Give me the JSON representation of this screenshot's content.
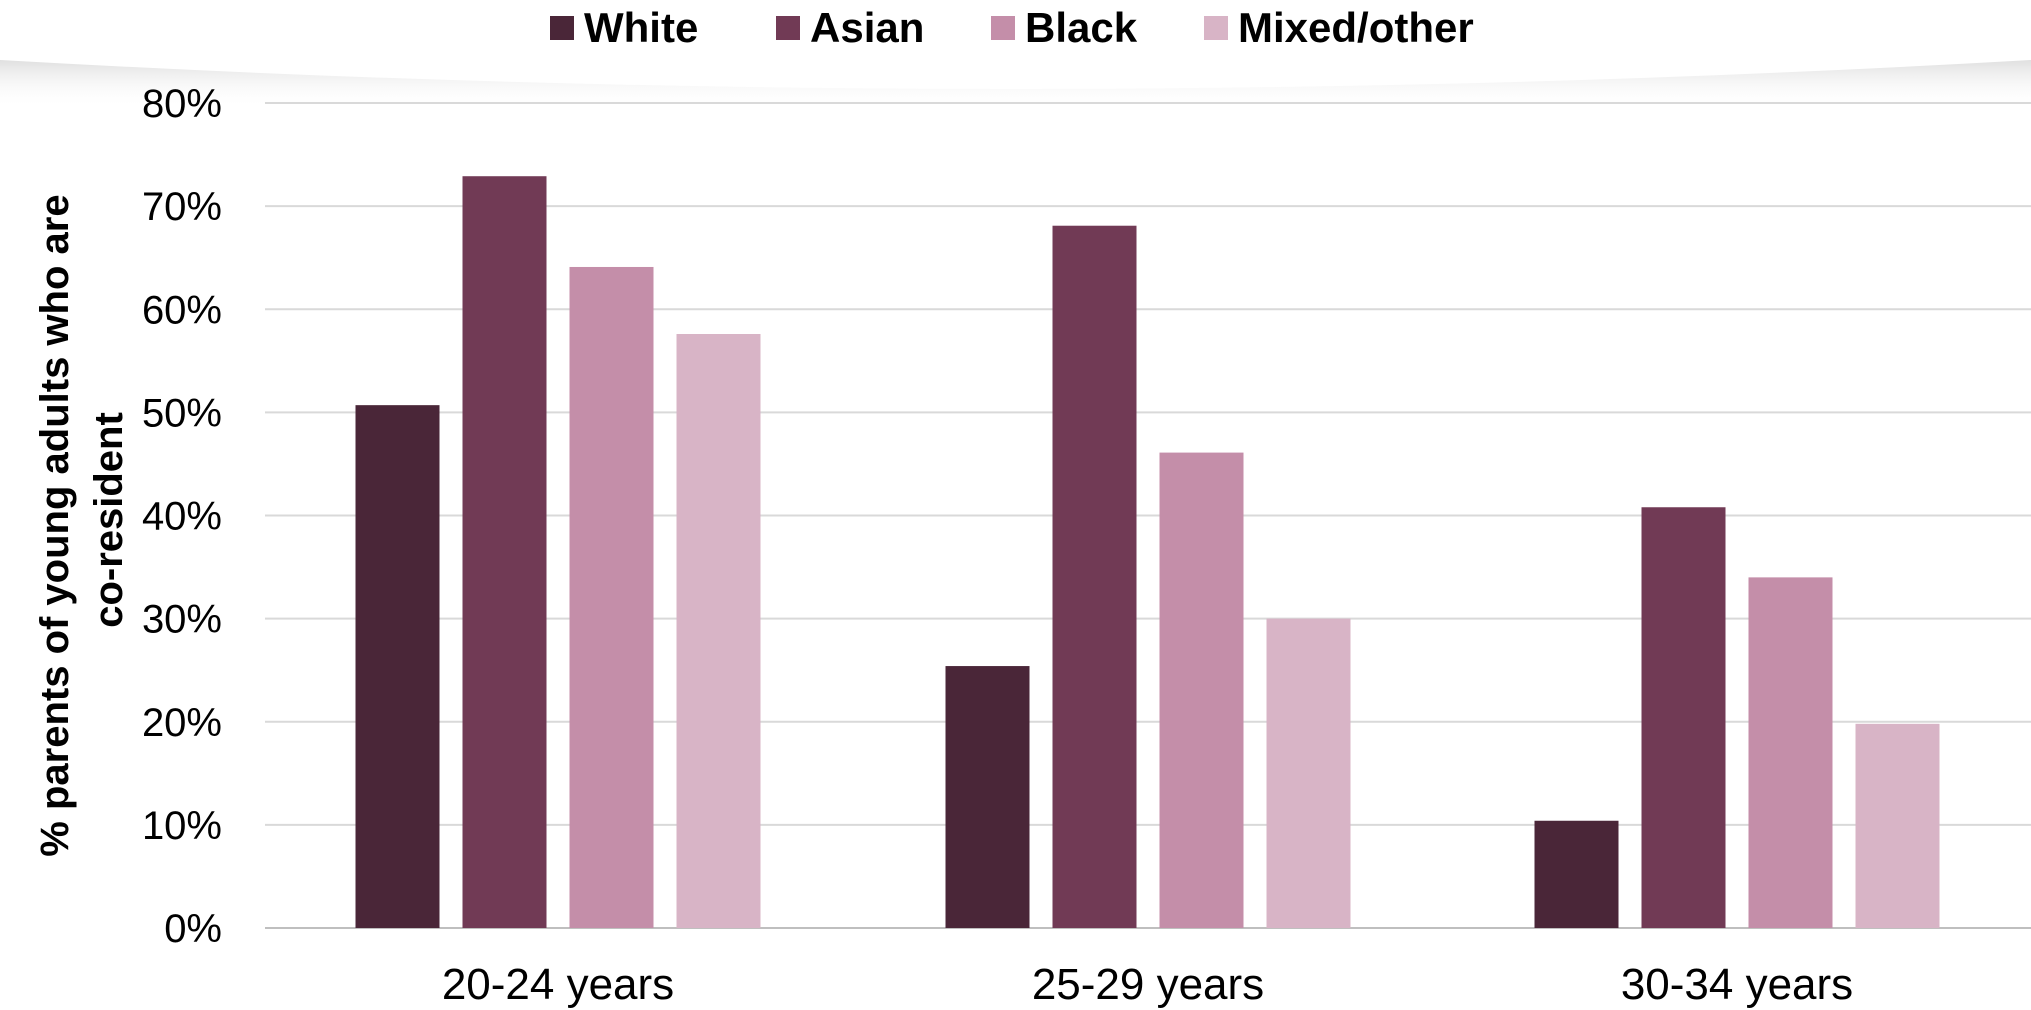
{
  "chart_data": {
    "type": "bar",
    "title": "",
    "xlabel": "",
    "ylabel": "% parents of young adults who are co-resident",
    "ylabel_lines": [
      "% parents of young adults who are",
      "co-resident"
    ],
    "categories": [
      "20-24 years",
      "25-29 years",
      "30-34 years"
    ],
    "series": [
      {
        "name": "White",
        "color": "#4a2638",
        "values": [
          50.7,
          25.4,
          10.4
        ]
      },
      {
        "name": "Asian",
        "color": "#713a55",
        "values": [
          72.9,
          68.1,
          40.8
        ]
      },
      {
        "name": "Black",
        "color": "#c48ea9",
        "values": [
          64.1,
          46.1,
          34.0
        ]
      },
      {
        "name": "Mixed/other",
        "color": "#d8b4c6",
        "values": [
          57.6,
          30.0,
          19.8
        ]
      }
    ],
    "ylim": [
      0,
      80
    ],
    "yticks": [
      0,
      10,
      20,
      30,
      40,
      50,
      60,
      70,
      80
    ],
    "ytick_labels": [
      "0%",
      "10%",
      "20%",
      "30%",
      "40%",
      "50%",
      "60%",
      "70%",
      "80%"
    ],
    "grid": true,
    "legend_position": "top-center"
  }
}
